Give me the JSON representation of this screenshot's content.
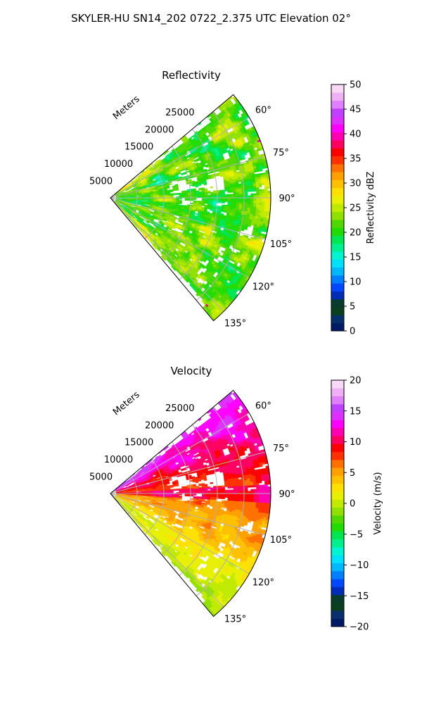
{
  "figure_title": "SKYLER-HU  SN14_202  0722_2.375 UTC Elevation 02°",
  "chart_data": [
    {
      "type": "heatmap",
      "subtype": "polar-sector-radar",
      "title": "Reflectivity",
      "radial_axis_label": "Meters",
      "radial_ticks": [
        5000,
        10000,
        15000,
        20000,
        25000
      ],
      "range_max": 30000,
      "angle_range_deg": [
        50,
        140
      ],
      "angle_ticks": [
        "60°",
        "75°",
        "90°",
        "105°",
        "120°",
        "135°"
      ],
      "angle_tick_values": [
        60,
        75,
        90,
        105,
        120,
        135
      ],
      "colorbar": {
        "label": "Reflectivity dBZ",
        "min": 0,
        "max": 50,
        "ticks": [
          0,
          5,
          10,
          15,
          20,
          25,
          30,
          35,
          40,
          45,
          50
        ],
        "tick_labels": [
          "0",
          "5",
          "10",
          "15",
          "20",
          "25",
          "30",
          "35",
          "40",
          "45",
          "50"
        ],
        "colors": [
          "#001a66",
          "#05306b",
          "#0a4020",
          "#083d2e",
          "#002db8",
          "#0048ff",
          "#0080ff",
          "#00b8ff",
          "#00e0ff",
          "#00f5d0",
          "#00f090",
          "#00e650",
          "#20dc00",
          "#50d800",
          "#90e000",
          "#c0ea00",
          "#e8f000",
          "#ffe000",
          "#ffc000",
          "#ffa000",
          "#ff7000",
          "#ff3000",
          "#ff0000",
          "#ff0060",
          "#ff00b0",
          "#ff00ff",
          "#dd30ff",
          "#c040ff",
          "#e080ff",
          "#f0b0f5",
          "#f8d8f5"
        ]
      },
      "grid": true
    },
    {
      "type": "heatmap",
      "subtype": "polar-sector-radar",
      "title": "Velocity",
      "radial_axis_label": "Meters",
      "radial_ticks": [
        5000,
        10000,
        15000,
        20000,
        25000
      ],
      "range_max": 30000,
      "angle_range_deg": [
        50,
        140
      ],
      "angle_ticks": [
        "60°",
        "75°",
        "90°",
        "105°",
        "120°",
        "135°"
      ],
      "angle_tick_values": [
        60,
        75,
        90,
        105,
        120,
        135
      ],
      "colorbar": {
        "label": "Velocity (m/s)",
        "min": -20,
        "max": 20,
        "ticks": [
          -20,
          -15,
          -10,
          -5,
          0,
          5,
          10,
          15,
          20
        ],
        "tick_labels": [
          "−20",
          "−15",
          "−10",
          "−5",
          "0",
          "5",
          "10",
          "15",
          "20"
        ],
        "colors": [
          "#001a66",
          "#05306b",
          "#0a4020",
          "#083d2e",
          "#002db8",
          "#0048ff",
          "#0080ff",
          "#00b8ff",
          "#00e0ff",
          "#00f5d0",
          "#00f090",
          "#00e650",
          "#20dc00",
          "#50d800",
          "#90e000",
          "#c0ea00",
          "#e8f000",
          "#ffe000",
          "#ffc000",
          "#ffa000",
          "#ff7000",
          "#ff3000",
          "#ff0000",
          "#ff0060",
          "#ff00b0",
          "#ff00ff",
          "#dd30ff",
          "#c040ff",
          "#e080ff",
          "#f0b0f5",
          "#f8d8f5"
        ]
      },
      "grid": true
    }
  ]
}
